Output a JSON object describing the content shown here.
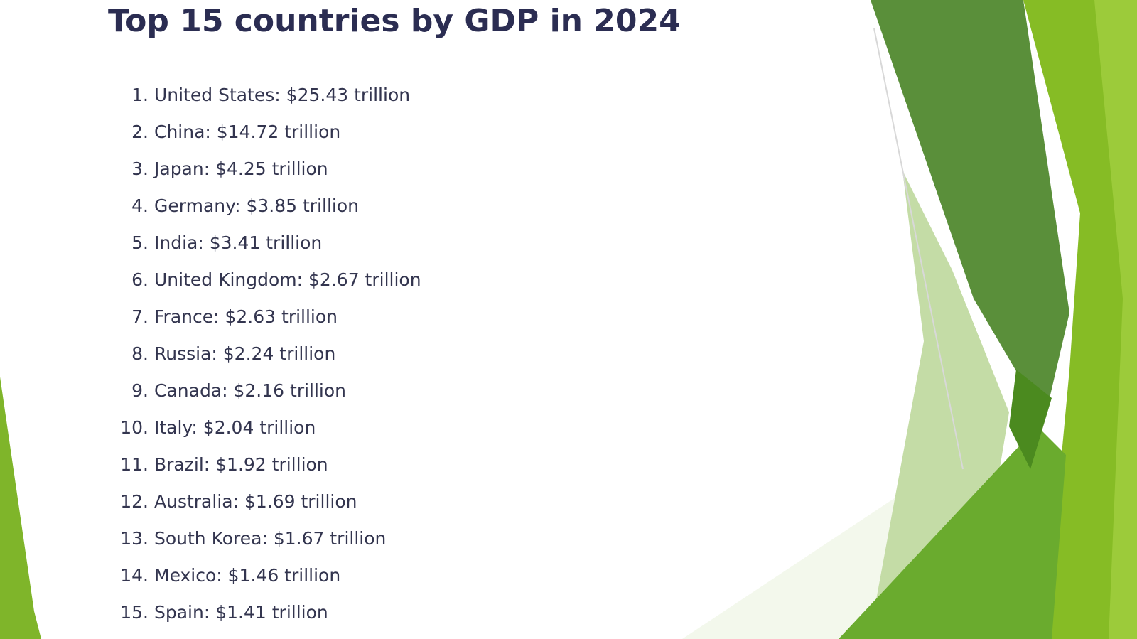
{
  "title": "Top 15 countries by GDP in 2024",
  "list": [
    {
      "number": "1.",
      "text": "United States: $25.43 trillion"
    },
    {
      "number": "2.",
      "text": "China: $14.72 trillion"
    },
    {
      "number": "3.",
      "text": "Japan: $4.25 trillion"
    },
    {
      "number": "4.",
      "text": "Germany: $3.85 trillion"
    },
    {
      "number": "5.",
      "text": "India: $3.41 trillion"
    },
    {
      "number": "6.",
      "text": "United Kingdom: $2.67 trillion"
    },
    {
      "number": "7.",
      "text": "France: $2.63 trillion"
    },
    {
      "number": "8.",
      "text": "Russia: $2.24 trillion"
    },
    {
      "number": "9.",
      "text": "Canada: $2.16 trillion"
    },
    {
      "number": "10.",
      "text": "Italy: $2.04 trillion"
    },
    {
      "number": "11.",
      "text": "Brazil: $1.92 trillion"
    },
    {
      "number": "12.",
      "text": "Australia: $1.69 trillion"
    },
    {
      "number": "13.",
      "text": "South Korea: $1.67 trillion"
    },
    {
      "number": "14.",
      "text": "Mexico: $1.46 trillion"
    },
    {
      "number": "15.",
      "text": "Spain: $1.41 trillion"
    }
  ],
  "colors": {
    "title": "#2b2d52",
    "text": "#33354f",
    "green_dark": "#5a8f3a",
    "green_mid": "#6aab2e",
    "green_bright": "#86bc25",
    "green_light": "#c4dca6"
  }
}
